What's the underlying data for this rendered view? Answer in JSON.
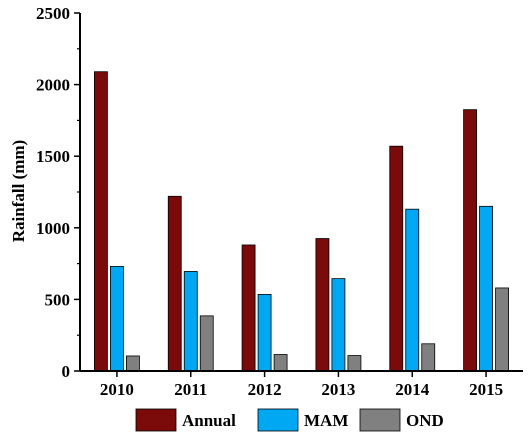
{
  "chart_data": {
    "type": "bar",
    "title": "",
    "xlabel": "",
    "ylabel": "Rainfall (mm)",
    "categories": [
      "2010",
      "2011",
      "2012",
      "2013",
      "2014",
      "2015"
    ],
    "ylim": [
      0,
      2500
    ],
    "yticks": [
      "0",
      "500",
      "1000",
      "1500",
      "2000",
      "2500"
    ],
    "series": [
      {
        "name": "Annual",
        "color": "#7b0a0a",
        "values": [
          2090,
          1220,
          880,
          925,
          1570,
          1825
        ]
      },
      {
        "name": "MAM",
        "color": "#00a8f3",
        "values": [
          730,
          695,
          535,
          645,
          1130,
          1150
        ]
      },
      {
        "name": "OND",
        "color": "#808080",
        "values": [
          105,
          385,
          115,
          108,
          190,
          580
        ]
      }
    ],
    "grid": false,
    "legend_position": "bottom"
  }
}
